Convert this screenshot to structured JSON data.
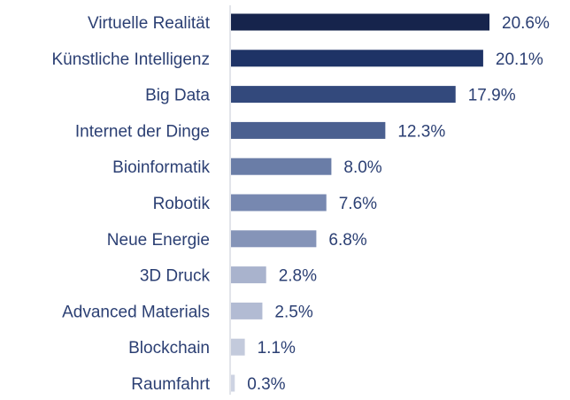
{
  "chart_data": {
    "type": "bar",
    "orientation": "horizontal",
    "categories": [
      "Virtuelle Realität",
      "Künstliche Intelligenz",
      "Big Data",
      "Internet der Dinge",
      "Bioinformatik",
      "Robotik",
      "Neue Energie",
      "3D Druck",
      "Advanced Materials",
      "Blockchain",
      "Raumfahrt"
    ],
    "values": [
      20.6,
      20.1,
      17.9,
      12.3,
      8.0,
      7.6,
      6.8,
      2.8,
      2.5,
      1.1,
      0.3
    ],
    "value_labels": [
      "20.6%",
      "20.1%",
      "17.9%",
      "12.3%",
      "8.0%",
      "7.6%",
      "6.8%",
      "2.8%",
      "2.5%",
      "1.1%",
      "0.3%"
    ],
    "colors": [
      "#16244c",
      "#1e3366",
      "#33497c",
      "#4b6090",
      "#6a7da7",
      "#7788b0",
      "#8594b8",
      "#a9b3cd",
      "#b2bbd3",
      "#c3cadc",
      "#cdd3e2"
    ],
    "xlim": [
      0,
      20.6
    ],
    "grid": false,
    "legend": "none"
  }
}
